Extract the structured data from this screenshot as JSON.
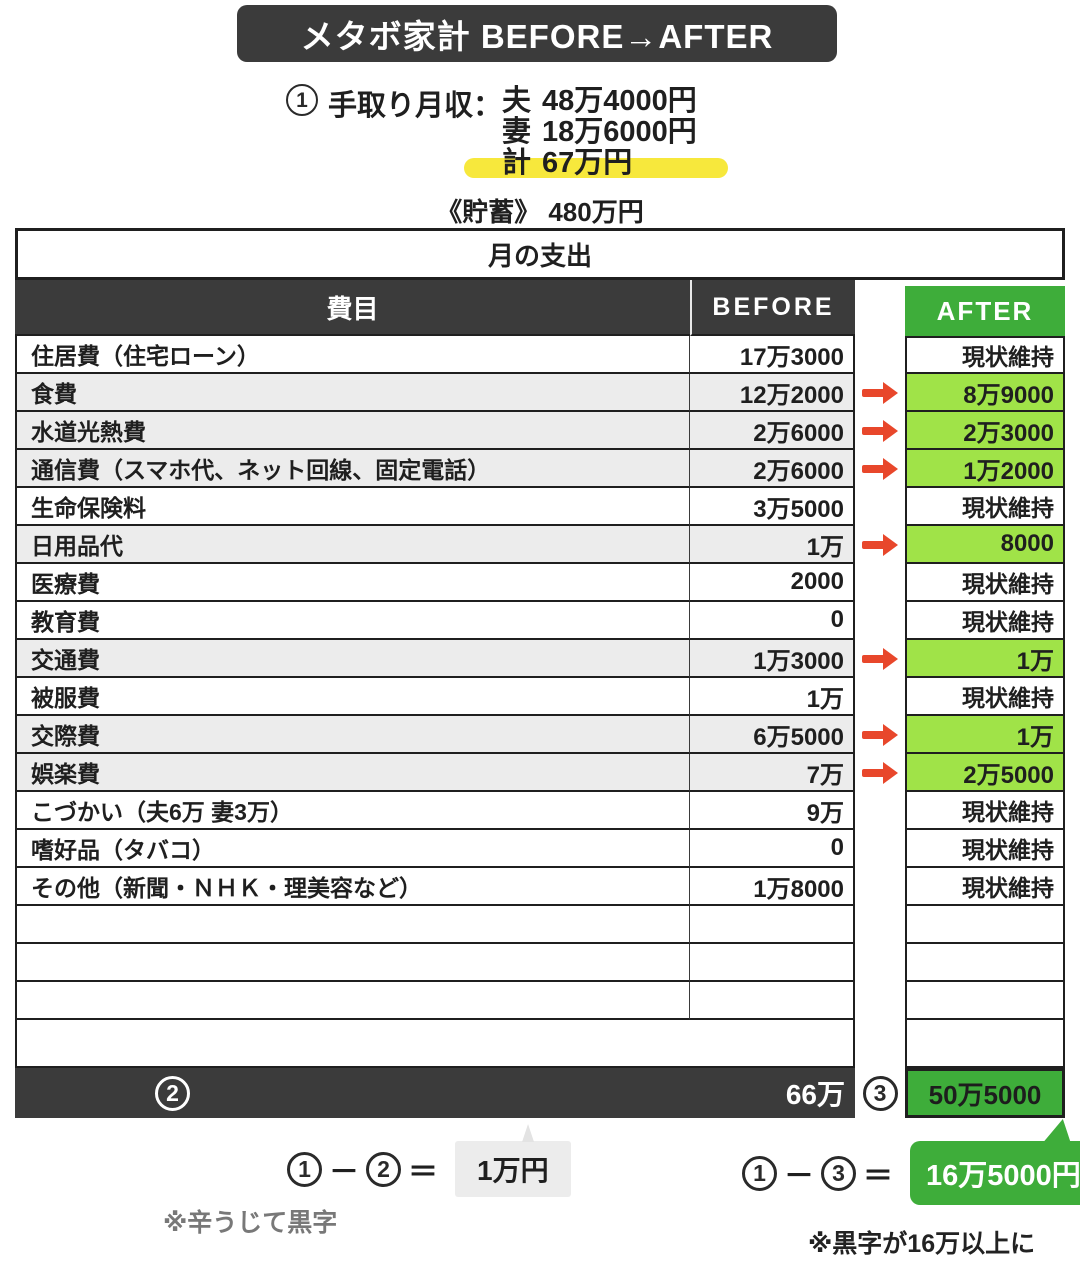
{
  "title": "メタボ家計 BEFORE→AFTER",
  "income": {
    "marker": "1",
    "label": "手取り月収：",
    "rows": [
      {
        "who": "夫",
        "amount": "48万4000円",
        "highlight": false
      },
      {
        "who": "妻",
        "amount": "18万6000円",
        "highlight": false
      },
      {
        "who": "計",
        "amount": "67万円",
        "highlight": true
      }
    ],
    "savings_label": "《貯蓄》",
    "savings_value": "480万円"
  },
  "table": {
    "caption": "月の支出",
    "columns": {
      "item": "費目",
      "before": "BEFORE",
      "after": "AFTER"
    },
    "rows": [
      {
        "item": "住居費（住宅ローン）",
        "before": "17万3000",
        "after": "現状維持",
        "changed": false
      },
      {
        "item": "食費",
        "before": "12万2000",
        "after": "8万9000",
        "changed": true
      },
      {
        "item": "水道光熱費",
        "before": "2万6000",
        "after": "2万3000",
        "changed": true
      },
      {
        "item": "通信費（スマホ代、ネット回線、固定電話）",
        "before": "2万6000",
        "after": "1万2000",
        "changed": true
      },
      {
        "item": "生命保険料",
        "before": "3万5000",
        "after": "現状維持",
        "changed": false
      },
      {
        "item": "日用品代",
        "before": "1万",
        "after": "8000",
        "changed": true
      },
      {
        "item": "医療費",
        "before": "2000",
        "after": "現状維持",
        "changed": false
      },
      {
        "item": "教育費",
        "before": "0",
        "after": "現状維持",
        "changed": false
      },
      {
        "item": "交通費",
        "before": "1万3000",
        "after": "1万",
        "changed": true
      },
      {
        "item": "被服費",
        "before": "1万",
        "after": "現状維持",
        "changed": false
      },
      {
        "item": "交際費",
        "before": "6万5000",
        "after": "1万",
        "changed": true
      },
      {
        "item": "娯楽費",
        "before": "7万",
        "after": "2万5000",
        "changed": true
      },
      {
        "item": "こづかい（夫6万 妻3万）",
        "before": "9万",
        "after": "現状維持",
        "changed": false
      },
      {
        "item": "嗜好品（タバコ）",
        "before": "0",
        "after": "現状維持",
        "changed": false
      },
      {
        "item": "その他（新聞・ＮＨＫ・理美容など）",
        "before": "1万8000",
        "after": "現状維持",
        "changed": false
      }
    ],
    "total": {
      "before_marker": "2",
      "before_total": "66万",
      "after_marker": "3",
      "after_total": "50万5000"
    }
  },
  "summary": {
    "left": {
      "a": "1",
      "minus": "－",
      "b": "2",
      "equals": "＝",
      "value": "1万円",
      "note": "※辛うじて黒字"
    },
    "right": {
      "a": "1",
      "minus": "－",
      "b": "3",
      "equals": "＝",
      "value": "16万5000円",
      "note": "※黒字が16万以上に"
    }
  },
  "colors": {
    "dark": "#3b3b3b",
    "accent_green": "#3ead3a",
    "light_green": "#a0e348",
    "arrow_red": "#e8472b",
    "marker_yellow": "#f7e83c",
    "row_gray": "#ececec",
    "box_gray": "#ececec"
  },
  "chart_data": {
    "type": "table",
    "title": "メタボ家計 BEFORE→AFTER",
    "subtitle": "月の支出",
    "income_rows": [
      [
        "夫",
        "48万4000円"
      ],
      [
        "妻",
        "18万6000円"
      ],
      [
        "計",
        "67万円"
      ]
    ],
    "savings": "480万円",
    "columns": [
      "費目",
      "BEFORE",
      "AFTER"
    ],
    "rows": [
      [
        "住居費（住宅ローン）",
        "17万3000",
        "現状維持"
      ],
      [
        "食費",
        "12万2000",
        "8万9000"
      ],
      [
        "水道光熱費",
        "2万6000",
        "2万3000"
      ],
      [
        "通信費（スマホ代、ネット回線、固定電話）",
        "2万6000",
        "1万2000"
      ],
      [
        "生命保険料",
        "3万5000",
        "現状維持"
      ],
      [
        "日用品代",
        "1万",
        "8000"
      ],
      [
        "医療費",
        "2000",
        "現状維持"
      ],
      [
        "教育費",
        "0",
        "現状維持"
      ],
      [
        "交通費",
        "1万3000",
        "1万"
      ],
      [
        "被服費",
        "1万",
        "現状維持"
      ],
      [
        "交際費",
        "6万5000",
        "1万"
      ],
      [
        "娯楽費",
        "7万",
        "2万5000"
      ],
      [
        "こづかい（夫6万 妻3万）",
        "9万",
        "現状維持"
      ],
      [
        "嗜好品（タバコ）",
        "0",
        "現状維持"
      ],
      [
        "その他（新聞・ＮＨＫ・理美容など）",
        "1万8000",
        "現状維持"
      ]
    ],
    "totals": {
      "before": "66万",
      "after": "50万5000"
    },
    "balance_before": "1万円",
    "balance_after": "16万5000円"
  }
}
